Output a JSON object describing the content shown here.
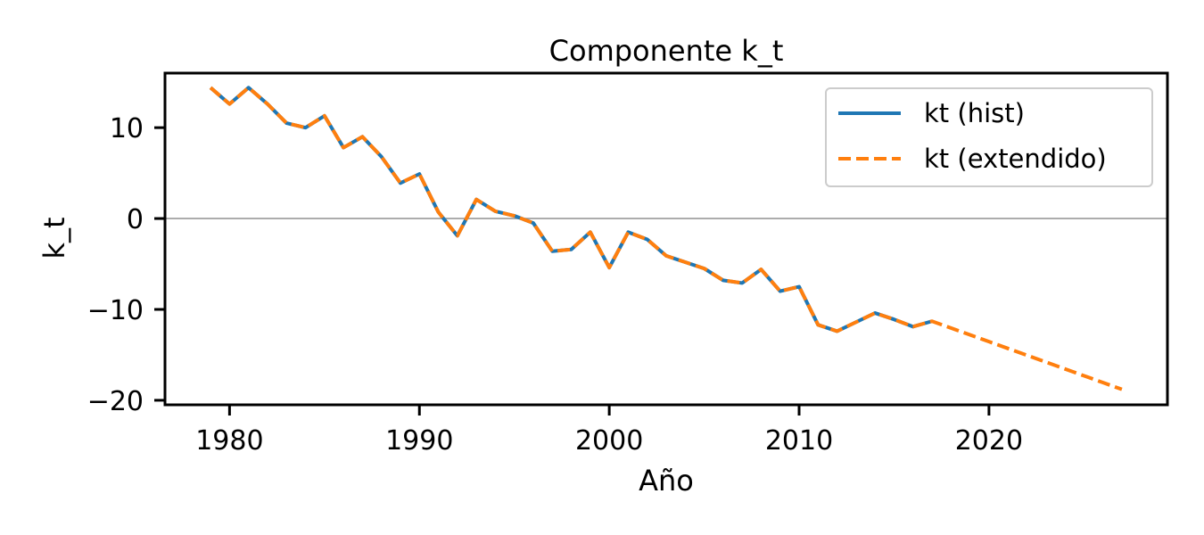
{
  "chart_data": {
    "type": "line",
    "title": "Componente k_t",
    "xlabel": "Año",
    "ylabel": "k_t",
    "xlim": [
      1976.6,
      2029.4
    ],
    "ylim": [
      -20.5,
      16
    ],
    "xticks": [
      1980,
      1990,
      2000,
      2010,
      2020
    ],
    "yticks": [
      -20,
      -10,
      0,
      10
    ],
    "ytick_labels": [
      "−20",
      "−10",
      "0",
      "10"
    ],
    "reference_line_y": 0,
    "grid": false,
    "legend_position": "upper right",
    "series": [
      {
        "name": "kt (hist)",
        "color": "#1f77b4",
        "style": "solid",
        "x": [
          1979,
          1980,
          1981,
          1982,
          1983,
          1984,
          1985,
          1986,
          1987,
          1988,
          1989,
          1990,
          1991,
          1992,
          1993,
          1994,
          1995,
          1996,
          1997,
          1998,
          1999,
          2000,
          2001,
          2002,
          2003,
          2004,
          2005,
          2006,
          2007,
          2008,
          2009,
          2010,
          2011,
          2012,
          2013,
          2014,
          2015,
          2016,
          2017
        ],
        "values": [
          14.4,
          12.6,
          14.4,
          12.6,
          10.5,
          10.0,
          11.3,
          7.8,
          9.0,
          6.8,
          3.9,
          4.9,
          0.7,
          -1.9,
          2.1,
          0.8,
          0.3,
          -0.5,
          -3.6,
          -3.4,
          -1.5,
          -5.4,
          -1.5,
          -2.3,
          -4.1,
          -4.8,
          -5.5,
          -6.8,
          -7.1,
          -5.6,
          -8.0,
          -7.5,
          -11.7,
          -12.4,
          -11.4,
          -10.4,
          -11.1,
          -11.9,
          -11.3
        ]
      },
      {
        "name": "kt (extendido)",
        "color": "#ff7f0e",
        "style": "dashed",
        "x": [
          1979,
          1980,
          1981,
          1982,
          1983,
          1984,
          1985,
          1986,
          1987,
          1988,
          1989,
          1990,
          1991,
          1992,
          1993,
          1994,
          1995,
          1996,
          1997,
          1998,
          1999,
          2000,
          2001,
          2002,
          2003,
          2004,
          2005,
          2006,
          2007,
          2008,
          2009,
          2010,
          2011,
          2012,
          2013,
          2014,
          2015,
          2016,
          2017,
          2018,
          2019,
          2020,
          2021,
          2022,
          2023,
          2024,
          2025,
          2026,
          2027
        ],
        "values": [
          14.4,
          12.6,
          14.4,
          12.6,
          10.5,
          10.0,
          11.3,
          7.8,
          9.0,
          6.8,
          3.9,
          4.9,
          0.7,
          -1.9,
          2.1,
          0.8,
          0.3,
          -0.5,
          -3.6,
          -3.4,
          -1.5,
          -5.4,
          -1.5,
          -2.3,
          -4.1,
          -4.8,
          -5.5,
          -6.8,
          -7.1,
          -5.6,
          -8.0,
          -7.5,
          -11.7,
          -12.4,
          -11.4,
          -10.4,
          -11.1,
          -11.9,
          -11.3,
          -12.05,
          -12.8,
          -13.55,
          -14.3,
          -15.05,
          -15.8,
          -16.55,
          -17.3,
          -18.05,
          -18.8
        ]
      }
    ]
  }
}
